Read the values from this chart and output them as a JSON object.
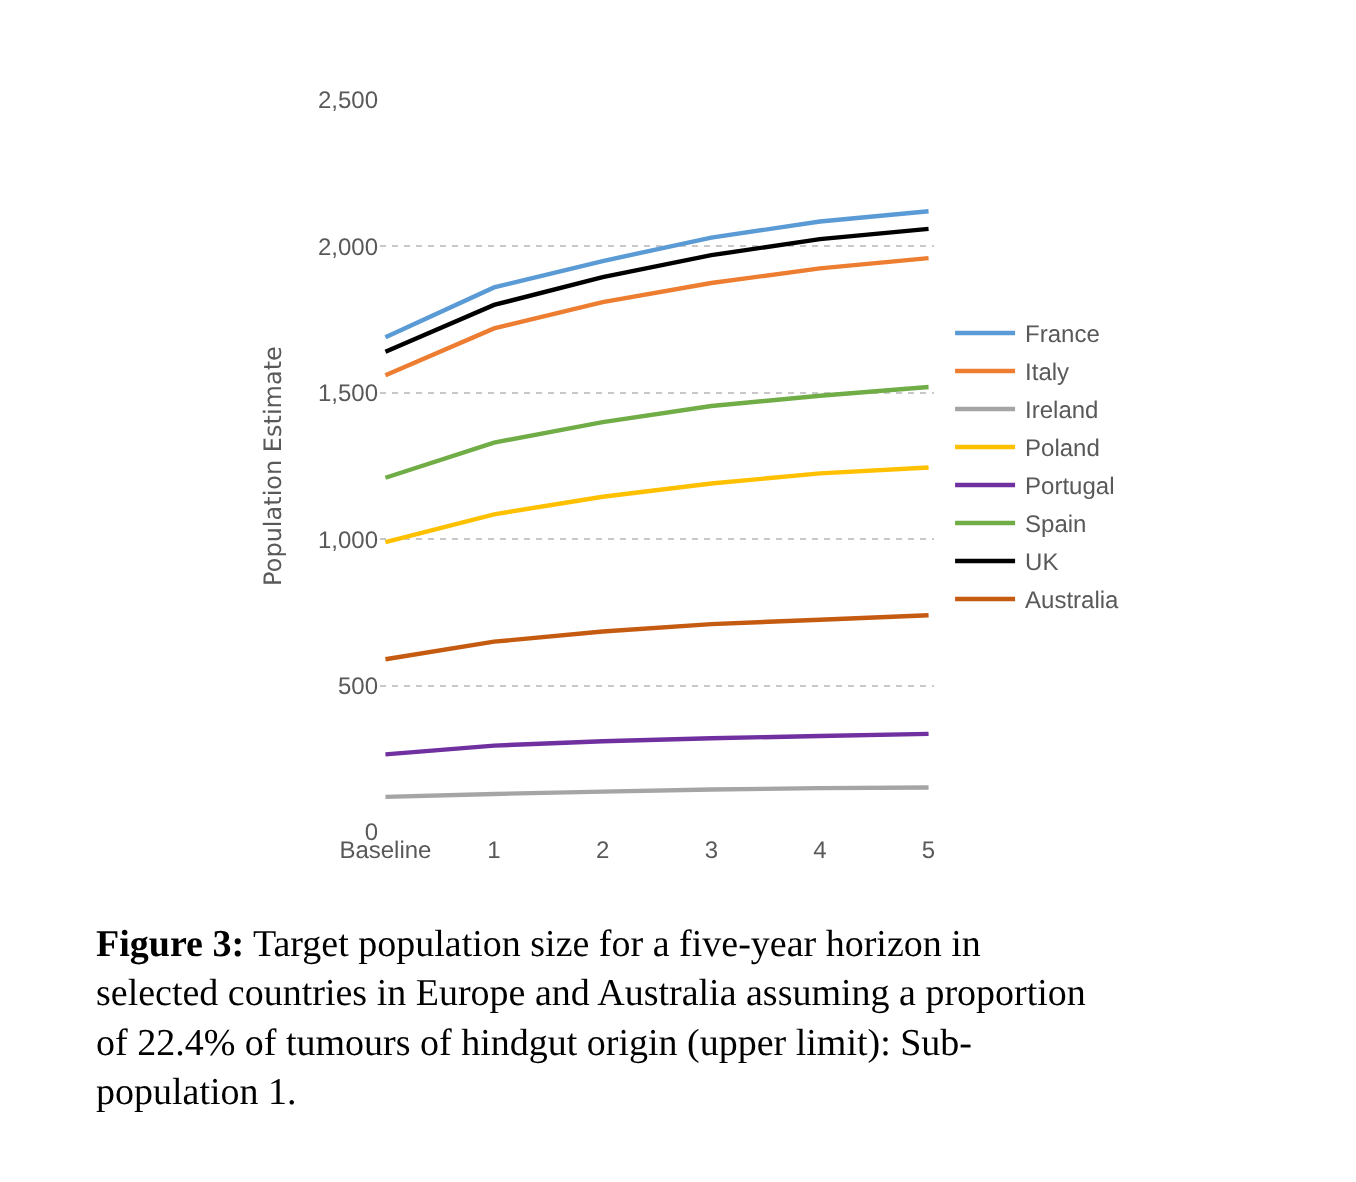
{
  "chart_data": {
    "type": "line",
    "ylabel": "Population Estimate",
    "categories": [
      "Baseline",
      "1",
      "2",
      "3",
      "4",
      "5"
    ],
    "series": [
      {
        "name": "France",
        "color": "#5b9bd5",
        "values": [
          1690,
          1860,
          1950,
          2030,
          2085,
          2120
        ]
      },
      {
        "name": "Italy",
        "color": "#ed7d31",
        "values": [
          1560,
          1720,
          1810,
          1875,
          1925,
          1960
        ]
      },
      {
        "name": "Ireland",
        "color": "#a5a5a5",
        "values": [
          120,
          130,
          138,
          145,
          150,
          152
        ]
      },
      {
        "name": "Poland",
        "color": "#ffc000",
        "values": [
          990,
          1085,
          1145,
          1190,
          1225,
          1245
        ]
      },
      {
        "name": "Portugal",
        "color": "#7030a0",
        "values": [
          265,
          295,
          310,
          320,
          328,
          335
        ]
      },
      {
        "name": "Spain",
        "color": "#70ad47",
        "values": [
          1210,
          1330,
          1400,
          1455,
          1490,
          1520
        ]
      },
      {
        "name": "UK",
        "color": "#000000",
        "values": [
          1640,
          1800,
          1895,
          1970,
          2025,
          2060
        ]
      },
      {
        "name": "Australia",
        "color": "#c55a11",
        "values": [
          590,
          650,
          685,
          710,
          725,
          740
        ]
      }
    ],
    "ylim": [
      0,
      2500
    ],
    "yticks": [
      0,
      500,
      {
        "value": 1000,
        "label": "1,000"
      },
      {
        "value": 1500,
        "label": "1,500"
      },
      {
        "value": 2000,
        "label": "2,000"
      },
      {
        "value": 2500,
        "label": "2,500"
      }
    ],
    "grid": "y",
    "legend": "right",
    "marker": "none",
    "line_style": "solid",
    "annotations": [
      "Figure 3:",
      "Target population size for a five-year horizon in selected countries in Europe and Australia assuming a proportion of 22.4% of tumours of hindgut origin (upper limit): Sub-population 1."
    ]
  }
}
